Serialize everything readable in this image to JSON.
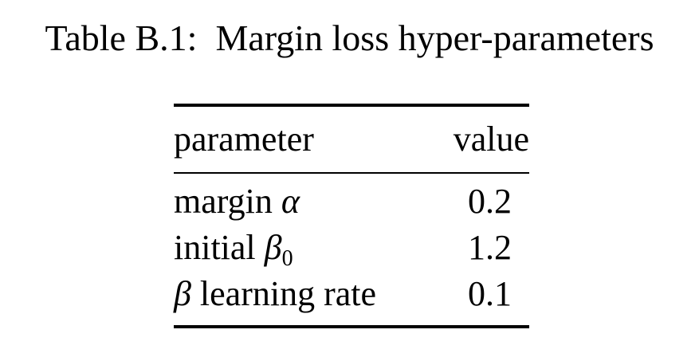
{
  "caption": {
    "label": "Table B.1:",
    "title": "Margin loss hyper-parameters"
  },
  "table": {
    "headers": {
      "parameter": "parameter",
      "value": "value"
    },
    "rows": [
      {
        "name_prefix": "margin ",
        "symbol": "α",
        "subscript": "",
        "name_suffix": "",
        "value": "0.2"
      },
      {
        "name_prefix": "initial ",
        "symbol": "β",
        "subscript": "0",
        "name_suffix": "",
        "value": "1.2"
      },
      {
        "name_prefix": "",
        "symbol": "β",
        "subscript": "",
        "name_suffix": " learning rate",
        "value": "0.1"
      }
    ]
  }
}
